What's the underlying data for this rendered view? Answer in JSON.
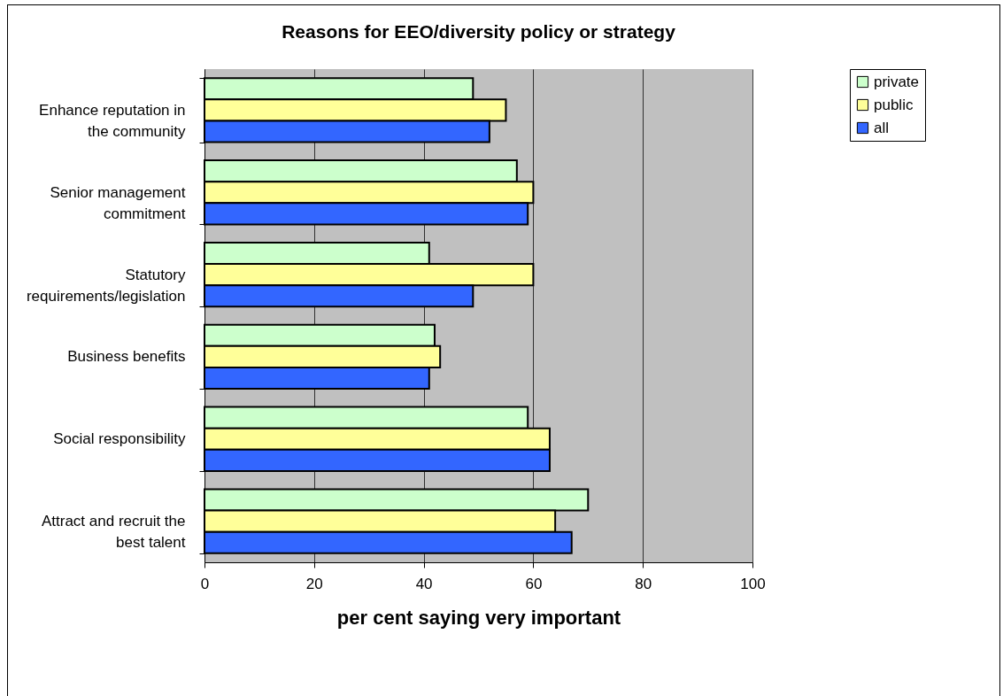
{
  "chart_data": {
    "type": "bar",
    "orientation": "horizontal",
    "title": "Reasons for EEO/diversity policy or strategy",
    "xlabel": "per cent saying very important",
    "categories": [
      "Enhance reputation in the community",
      "Senior management commitment",
      "Statutory requirements/legislation",
      "Business benefits",
      "Social responsibility",
      "Attract and recruit the best talent"
    ],
    "series": [
      {
        "name": "private",
        "color": "#ccffcc",
        "values": [
          49,
          57,
          41,
          42,
          59,
          70
        ]
      },
      {
        "name": "public",
        "color": "#ffff99",
        "values": [
          55,
          60,
          60,
          43,
          63,
          64
        ]
      },
      {
        "name": "all",
        "color": "#3366ff",
        "values": [
          52,
          59,
          49,
          41,
          63,
          67
        ]
      }
    ],
    "xlim": [
      0,
      100
    ],
    "xticks": [
      0,
      20,
      40,
      60,
      80,
      100
    ],
    "grid": "x",
    "legend": "right"
  }
}
